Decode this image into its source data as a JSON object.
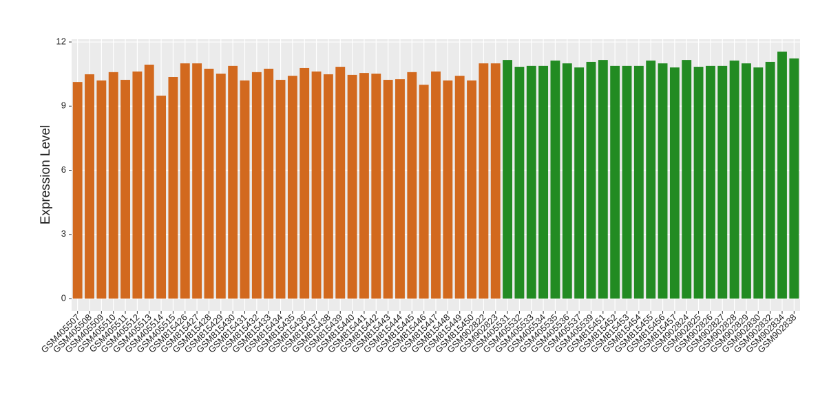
{
  "chart_data": {
    "type": "bar",
    "y_label": "Expression Level",
    "categories": [
      "GSM405507",
      "GSM405508",
      "GSM405509",
      "GSM405510",
      "GSM405511",
      "GSM405512",
      "GSM405513",
      "GSM405514",
      "GSM405515",
      "GSM815426",
      "GSM815427",
      "GSM815428",
      "GSM815429",
      "GSM815430",
      "GSM815431",
      "GSM815432",
      "GSM815433",
      "GSM815434",
      "GSM815435",
      "GSM815436",
      "GSM815437",
      "GSM815438",
      "GSM815439",
      "GSM815440",
      "GSM815441",
      "GSM815442",
      "GSM815443",
      "GSM815444",
      "GSM815445",
      "GSM815446",
      "GSM815447",
      "GSM815448",
      "GSM815449",
      "GSM815450",
      "GSM902822",
      "GSM902823",
      "GSM405531",
      "GSM405532",
      "GSM405533",
      "GSM405534",
      "GSM405535",
      "GSM405536",
      "GSM405537",
      "GSM405539",
      "GSM815451",
      "GSM815452",
      "GSM815453",
      "GSM815454",
      "GSM815455",
      "GSM815456",
      "GSM815457",
      "GSM902824",
      "GSM902825",
      "GSM902826",
      "GSM902827",
      "GSM902828",
      "GSM902829",
      "GSM902830",
      "GSM902832",
      "GSM902834",
      "GSM902838"
    ],
    "values": [
      10.13,
      10.49,
      10.2,
      10.59,
      10.23,
      10.62,
      10.94,
      9.49,
      10.36,
      11.0,
      11.0,
      10.75,
      10.52,
      10.88,
      10.2,
      10.59,
      10.75,
      10.23,
      10.42,
      10.78,
      10.62,
      10.49,
      10.84,
      10.46,
      10.55,
      10.52,
      10.23,
      10.26,
      10.59,
      10.0,
      10.62,
      10.2,
      10.42,
      10.2,
      11.0,
      11.0,
      11.16,
      10.84,
      10.88,
      10.88,
      11.13,
      11.0,
      10.81,
      11.07,
      11.16,
      10.88,
      10.88,
      10.88,
      11.13,
      11.0,
      10.81,
      11.16,
      10.84,
      10.88,
      10.88,
      11.13,
      11.0,
      10.81,
      11.07,
      11.55,
      11.23
    ],
    "colors": [
      "#d2691e",
      "#d2691e",
      "#d2691e",
      "#d2691e",
      "#d2691e",
      "#d2691e",
      "#d2691e",
      "#d2691e",
      "#d2691e",
      "#d2691e",
      "#d2691e",
      "#d2691e",
      "#d2691e",
      "#d2691e",
      "#d2691e",
      "#d2691e",
      "#d2691e",
      "#d2691e",
      "#d2691e",
      "#d2691e",
      "#d2691e",
      "#d2691e",
      "#d2691e",
      "#d2691e",
      "#d2691e",
      "#d2691e",
      "#d2691e",
      "#d2691e",
      "#d2691e",
      "#d2691e",
      "#d2691e",
      "#d2691e",
      "#d2691e",
      "#d2691e",
      "#d2691e",
      "#d2691e",
      "#228b22",
      "#228b22",
      "#228b22",
      "#228b22",
      "#228b22",
      "#228b22",
      "#228b22",
      "#228b22",
      "#228b22",
      "#228b22",
      "#228b22",
      "#228b22",
      "#228b22",
      "#228b22",
      "#228b22",
      "#228b22",
      "#228b22",
      "#228b22",
      "#228b22",
      "#228b22",
      "#228b22",
      "#228b22",
      "#228b22",
      "#228b22",
      "#228b22"
    ],
    "ylim": [
      -0.58,
      12.13
    ],
    "yticks": [
      0,
      3,
      6,
      9,
      12
    ],
    "grid": true
  }
}
